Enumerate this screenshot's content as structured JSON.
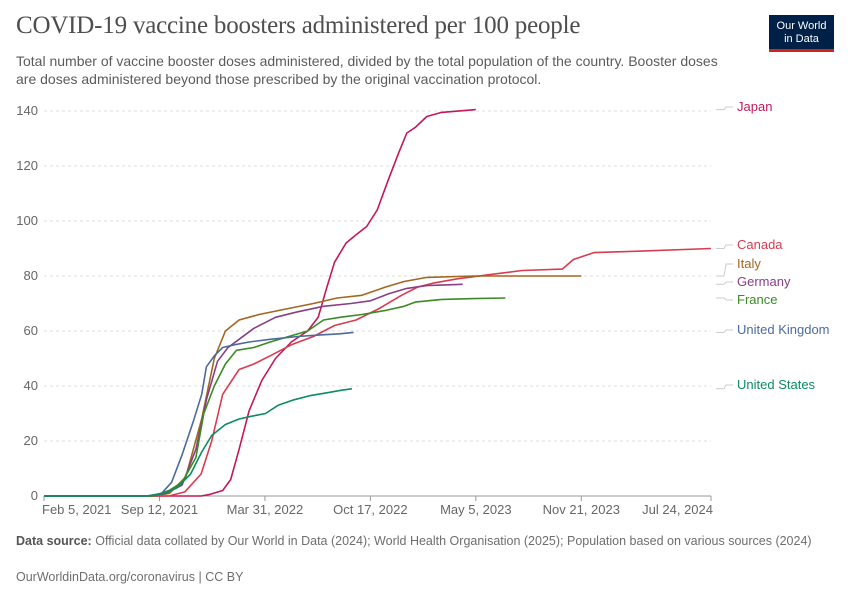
{
  "header": {
    "title": "COVID-19 vaccine boosters administered per 100 people",
    "subtitle": "Total number of vaccine booster doses administered, divided by the total population of the country. Booster doses are doses administered beyond those prescribed by the original vaccination protocol.",
    "logo_line1": "Our World",
    "logo_line2": "in Data"
  },
  "footer": {
    "source_label": "Data source:",
    "source_text": "Official data collated by Our World in Data (2024); World Health Organisation (2025); Population based on various sources (2024)",
    "url_text": "OurWorldinData.org/coronavirus | CC BY"
  },
  "colors": {
    "Japan": "#c2185b",
    "Canada": "#d73c50",
    "Italy": "#a2671f",
    "Germany": "#883f86",
    "France": "#3a8b26",
    "United Kingdom": "#4c6a9c",
    "United States": "#0c8c63"
  },
  "chart_data": {
    "type": "line",
    "x_type": "date",
    "xlim": [
      "2021-02-05",
      "2024-07-24"
    ],
    "ylim": [
      0,
      140
    ],
    "y_ticks": [
      0,
      20,
      40,
      60,
      80,
      100,
      120,
      140
    ],
    "x_ticks": [
      "2021-02-05",
      "2021-09-12",
      "2022-03-31",
      "2022-10-17",
      "2023-05-05",
      "2023-11-21",
      "2024-07-24"
    ],
    "x_tick_labels": [
      "Feb 5, 2021",
      "Sep 12, 2021",
      "Mar 31, 2022",
      "Oct 17, 2022",
      "May 5, 2023",
      "Nov 21, 2023",
      "Jul 24, 2024"
    ],
    "grid": "horizontal-dashed",
    "legend": "right-end-labels",
    "series": [
      {
        "name": "Japan",
        "points": [
          [
            "2021-02-05",
            0
          ],
          [
            "2021-11-30",
            0
          ],
          [
            "2021-12-15",
            0.5
          ],
          [
            "2022-01-10",
            2
          ],
          [
            "2022-01-25",
            6
          ],
          [
            "2022-02-10",
            17
          ],
          [
            "2022-03-01",
            31
          ],
          [
            "2022-03-25",
            42
          ],
          [
            "2022-04-20",
            50
          ],
          [
            "2022-05-20",
            56
          ],
          [
            "2022-06-20",
            60
          ],
          [
            "2022-07-10",
            65
          ],
          [
            "2022-07-25",
            75
          ],
          [
            "2022-08-10",
            85
          ],
          [
            "2022-09-01",
            92
          ],
          [
            "2022-09-20",
            95
          ],
          [
            "2022-10-10",
            98
          ],
          [
            "2022-10-30",
            104
          ],
          [
            "2022-11-20",
            115
          ],
          [
            "2022-12-10",
            125
          ],
          [
            "2022-12-25",
            132
          ],
          [
            "2023-01-10",
            134
          ],
          [
            "2023-02-01",
            138
          ],
          [
            "2023-03-01",
            139.5
          ],
          [
            "2023-05-05",
            140.5
          ]
        ]
      },
      {
        "name": "Canada",
        "points": [
          [
            "2021-02-05",
            0
          ],
          [
            "2021-09-30",
            0
          ],
          [
            "2021-10-30",
            1.5
          ],
          [
            "2021-11-30",
            8
          ],
          [
            "2021-12-20",
            20
          ],
          [
            "2022-01-10",
            37
          ],
          [
            "2022-02-10",
            46
          ],
          [
            "2022-03-10",
            48
          ],
          [
            "2022-04-10",
            51
          ],
          [
            "2022-05-20",
            55
          ],
          [
            "2022-07-01",
            58
          ],
          [
            "2022-08-10",
            62
          ],
          [
            "2022-09-20",
            64
          ],
          [
            "2022-11-01",
            68
          ],
          [
            "2022-12-15",
            73
          ],
          [
            "2023-01-15",
            76
          ],
          [
            "2023-02-15",
            77.5
          ],
          [
            "2023-03-31",
            79
          ],
          [
            "2023-06-01",
            80.5
          ],
          [
            "2023-08-01",
            82
          ],
          [
            "2023-10-16",
            82.5
          ],
          [
            "2023-11-06",
            86
          ],
          [
            "2023-12-15",
            88.5
          ],
          [
            "2024-03-01",
            89
          ],
          [
            "2024-07-24",
            90
          ]
        ]
      },
      {
        "name": "Italy",
        "points": [
          [
            "2021-02-05",
            0
          ],
          [
            "2021-09-01",
            0
          ],
          [
            "2021-10-01",
            1
          ],
          [
            "2021-11-01",
            7
          ],
          [
            "2021-12-01",
            28
          ],
          [
            "2021-12-25",
            50
          ],
          [
            "2022-01-15",
            60
          ],
          [
            "2022-02-10",
            64
          ],
          [
            "2022-03-20",
            66
          ],
          [
            "2022-05-10",
            68
          ],
          [
            "2022-07-01",
            70
          ],
          [
            "2022-08-15",
            72
          ],
          [
            "2022-10-01",
            73
          ],
          [
            "2022-11-15",
            76
          ],
          [
            "2022-12-20",
            78
          ],
          [
            "2023-02-01",
            79.5
          ],
          [
            "2023-05-01",
            80
          ],
          [
            "2023-11-21",
            80
          ]
        ]
      },
      {
        "name": "Germany",
        "points": [
          [
            "2021-02-05",
            0
          ],
          [
            "2021-08-20",
            0
          ],
          [
            "2021-09-25",
            1
          ],
          [
            "2021-10-25",
            4
          ],
          [
            "2021-11-20",
            17
          ],
          [
            "2021-12-10",
            35
          ],
          [
            "2021-12-31",
            49
          ],
          [
            "2022-01-20",
            54
          ],
          [
            "2022-02-10",
            57
          ],
          [
            "2022-03-10",
            61
          ],
          [
            "2022-04-20",
            65
          ],
          [
            "2022-06-01",
            67
          ],
          [
            "2022-07-20",
            69
          ],
          [
            "2022-09-10",
            70
          ],
          [
            "2022-10-17",
            71
          ],
          [
            "2022-11-20",
            73.5
          ],
          [
            "2022-12-25",
            75.5
          ],
          [
            "2023-02-01",
            76.5
          ],
          [
            "2023-04-10",
            77
          ]
        ]
      },
      {
        "name": "France",
        "points": [
          [
            "2021-02-05",
            0
          ],
          [
            "2021-09-01",
            0
          ],
          [
            "2021-09-30",
            2
          ],
          [
            "2021-10-25",
            5
          ],
          [
            "2021-11-20",
            14
          ],
          [
            "2021-12-05",
            30
          ],
          [
            "2021-12-25",
            40
          ],
          [
            "2022-01-15",
            48
          ],
          [
            "2022-02-05",
            53
          ],
          [
            "2022-03-10",
            54
          ],
          [
            "2022-04-10",
            56
          ],
          [
            "2022-05-15",
            58
          ],
          [
            "2022-06-20",
            60
          ],
          [
            "2022-07-20",
            64
          ],
          [
            "2022-08-20",
            65
          ],
          [
            "2022-10-01",
            66
          ],
          [
            "2022-11-15",
            67.5
          ],
          [
            "2022-12-20",
            69
          ],
          [
            "2023-01-10",
            70.5
          ],
          [
            "2023-03-01",
            71.5
          ],
          [
            "2023-05-01",
            71.8
          ],
          [
            "2023-06-30",
            72
          ]
        ]
      },
      {
        "name": "United Kingdom",
        "points": [
          [
            "2021-02-05",
            0
          ],
          [
            "2021-08-20",
            0
          ],
          [
            "2021-09-16",
            1
          ],
          [
            "2021-10-05",
            5
          ],
          [
            "2021-10-25",
            15
          ],
          [
            "2021-11-15",
            27
          ],
          [
            "2021-12-01",
            37
          ],
          [
            "2021-12-10",
            47
          ],
          [
            "2021-12-25",
            51
          ],
          [
            "2022-01-10",
            54
          ],
          [
            "2022-02-01",
            55
          ],
          [
            "2022-03-01",
            56
          ],
          [
            "2022-04-10",
            57
          ],
          [
            "2022-06-01",
            58
          ],
          [
            "2022-07-10",
            58.5
          ],
          [
            "2022-08-20",
            59
          ],
          [
            "2022-09-15",
            59.5
          ]
        ]
      },
      {
        "name": "United States",
        "points": [
          [
            "2021-02-05",
            0
          ],
          [
            "2021-08-20",
            0
          ],
          [
            "2021-09-22",
            1
          ],
          [
            "2021-10-15",
            3
          ],
          [
            "2021-11-10",
            8
          ],
          [
            "2021-12-01",
            16
          ],
          [
            "2021-12-20",
            22
          ],
          [
            "2022-01-15",
            26
          ],
          [
            "2022-02-10",
            28
          ],
          [
            "2022-03-05",
            29
          ],
          [
            "2022-04-01",
            30
          ],
          [
            "2022-04-25",
            33
          ],
          [
            "2022-05-25",
            35
          ],
          [
            "2022-06-25",
            36.5
          ],
          [
            "2022-07-25",
            37.5
          ],
          [
            "2022-08-25",
            38.5
          ],
          [
            "2022-09-12",
            39
          ]
        ]
      }
    ]
  }
}
